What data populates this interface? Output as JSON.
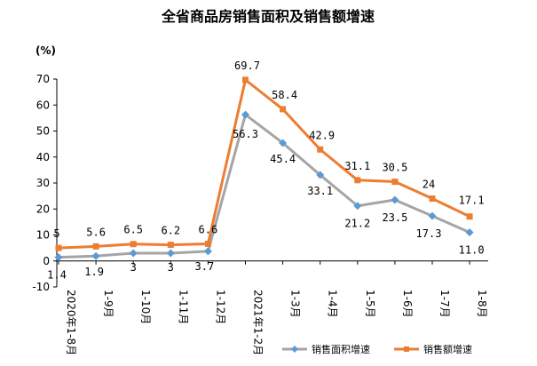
{
  "chart_data": {
    "type": "line",
    "title": "全省商品房销售面积及销售额增速",
    "ylabel": "(%)",
    "xlabel": "",
    "ylim": [
      -10,
      70
    ],
    "yticks": [
      -10,
      0,
      10,
      20,
      30,
      40,
      50,
      60,
      70
    ],
    "grid": false,
    "legend_position": "bottom-right",
    "categories": [
      "2020年1-8月",
      "1-9月",
      "1-10月",
      "1-11月",
      "1-12月",
      "2021年1-2月",
      "1-3月",
      "1-4月",
      "1-5月",
      "1-6月",
      "1-7月",
      "1-8月"
    ],
    "series": [
      {
        "name": "销售面积增速",
        "color": "#a5a5a5",
        "marker_color": "#5b9bd5",
        "marker": "diamond",
        "values": [
          1.4,
          1.9,
          3,
          3,
          3.7,
          56.3,
          45.4,
          33.1,
          21.2,
          23.5,
          17.3,
          11.0
        ],
        "labels": [
          "1.4",
          "1.9",
          "3",
          "3",
          "3.7",
          "56.3",
          "45.4",
          "33.1",
          "21.2",
          "23.5",
          "17.3",
          "11.0"
        ]
      },
      {
        "name": "销售额增速",
        "color": "#ed7d31",
        "marker_color": "#ed7d31",
        "marker": "square",
        "values": [
          5,
          5.6,
          6.5,
          6.2,
          6.6,
          69.7,
          58.4,
          42.9,
          31.1,
          30.5,
          24,
          17.1
        ],
        "labels": [
          "5",
          "5.6",
          "6.5",
          "6.2",
          "6.6",
          "69.7",
          "58.4",
          "42.9",
          "31.1",
          "30.5",
          "24",
          "17.1"
        ]
      }
    ]
  }
}
